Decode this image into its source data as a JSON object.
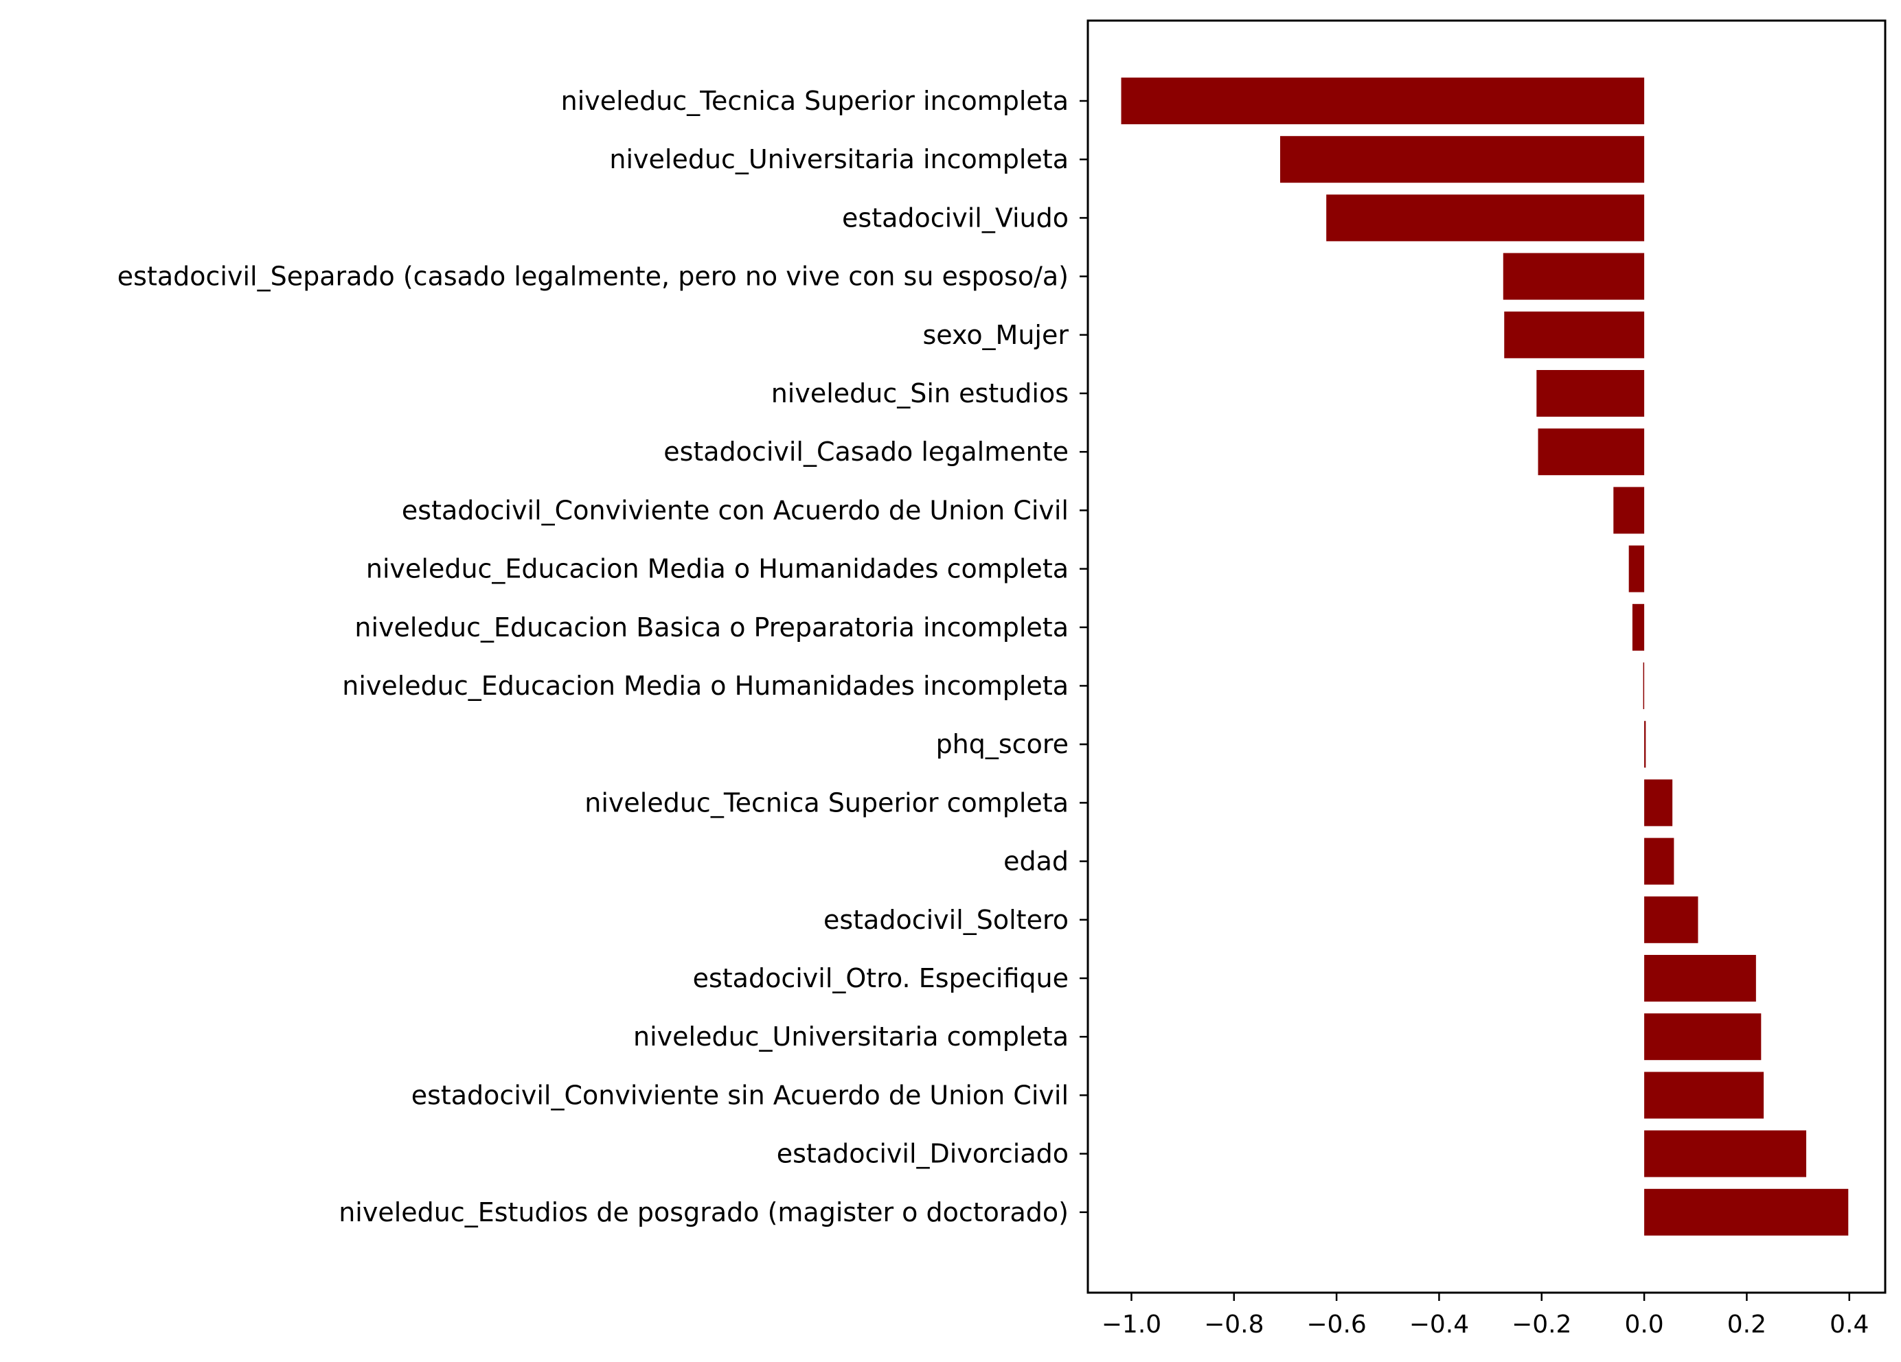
{
  "chart_data": {
    "type": "bar",
    "orientation": "horizontal",
    "categories": [
      "niveleduc_Tecnica Superior incompleta",
      "niveleduc_Universitaria incompleta",
      "estadocivil_Viudo",
      "estadocivil_Separado (casado legalmente, pero no vive con su esposo/a)",
      "sexo_Mujer",
      "niveleduc_Sin estudios",
      "estadocivil_Casado legalmente",
      "estadocivil_Conviviente con Acuerdo de Union Civil",
      "niveleduc_Educacion Media o Humanidades completa",
      "niveleduc_Educacion Basica o Preparatoria incompleta",
      "niveleduc_Educacion Media o Humanidades incompleta",
      "phq_score",
      "niveleduc_Tecnica Superior completa",
      "edad",
      "estadocivil_Soltero",
      "estadocivil_Otro. Especifique",
      "niveleduc_Universitaria completa",
      "estadocivil_Conviviente sin Acuerdo de Union Civil",
      "estadocivil_Divorciado",
      "niveleduc_Estudios de posgrado (magister o doctorado)"
    ],
    "values": [
      -1.02,
      -0.71,
      -0.62,
      -0.275,
      -0.273,
      -0.21,
      -0.207,
      -0.06,
      -0.03,
      -0.023,
      -0.002,
      0.003,
      0.055,
      0.058,
      0.105,
      0.218,
      0.228,
      0.233,
      0.316,
      0.398
    ],
    "xlim": [
      -1.085,
      0.47
    ],
    "xticks": [
      -1.0,
      -0.8,
      -0.6,
      -0.4,
      -0.2,
      0.0,
      0.2,
      0.4
    ],
    "xtick_labels": [
      "−1.0",
      "−0.8",
      "−0.6",
      "−0.4",
      "−0.2",
      "0.0",
      "0.2",
      "0.4"
    ],
    "bar_color": "#8b0000",
    "grid": false,
    "title": "",
    "xlabel": "",
    "ylabel": ""
  }
}
